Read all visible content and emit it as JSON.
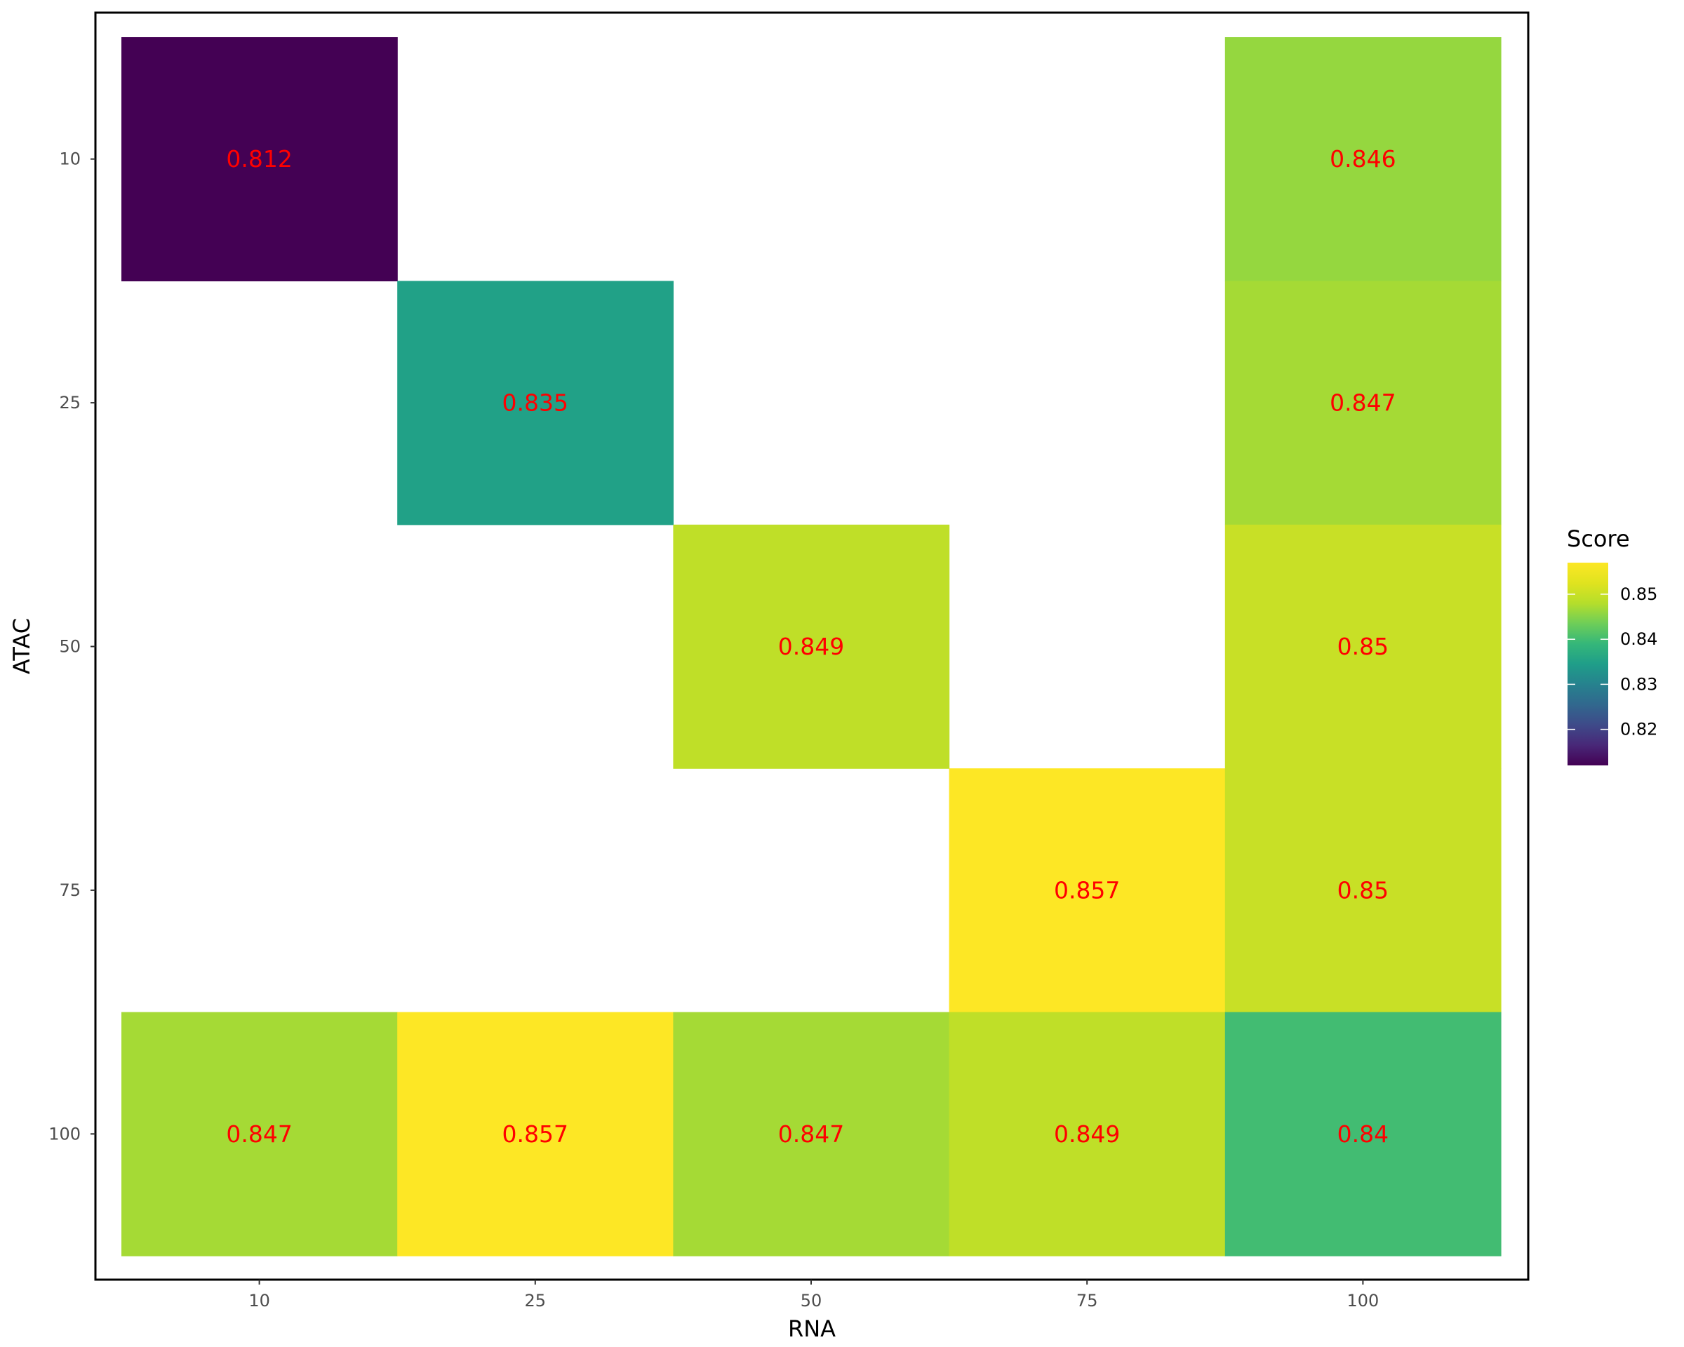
{
  "chart_data": {
    "type": "heatmap",
    "xlabel": "RNA",
    "ylabel": "ATAC",
    "x_categories": [
      "10",
      "25",
      "50",
      "75",
      "100"
    ],
    "y_categories": [
      "10",
      "25",
      "50",
      "75",
      "100"
    ],
    "cells": [
      {
        "x": "10",
        "y": "10",
        "value": 0.812,
        "label": "0.812"
      },
      {
        "x": "100",
        "y": "10",
        "value": 0.846,
        "label": "0.846"
      },
      {
        "x": "25",
        "y": "25",
        "value": 0.835,
        "label": "0.835"
      },
      {
        "x": "100",
        "y": "25",
        "value": 0.847,
        "label": "0.847"
      },
      {
        "x": "50",
        "y": "50",
        "value": 0.849,
        "label": "0.849"
      },
      {
        "x": "100",
        "y": "50",
        "value": 0.85,
        "label": "0.85"
      },
      {
        "x": "75",
        "y": "75",
        "value": 0.857,
        "label": "0.857"
      },
      {
        "x": "100",
        "y": "75",
        "value": 0.85,
        "label": "0.85"
      },
      {
        "x": "10",
        "y": "100",
        "value": 0.847,
        "label": "0.847"
      },
      {
        "x": "25",
        "y": "100",
        "value": 0.857,
        "label": "0.857"
      },
      {
        "x": "50",
        "y": "100",
        "value": 0.847,
        "label": "0.847"
      },
      {
        "x": "75",
        "y": "100",
        "value": 0.849,
        "label": "0.849"
      },
      {
        "x": "100",
        "y": "100",
        "value": 0.84,
        "label": "0.84"
      }
    ],
    "legend": {
      "title": "Score",
      "ticks": [
        "0.82",
        "0.83",
        "0.84",
        "0.85"
      ],
      "tick_values": [
        0.82,
        0.83,
        0.84,
        0.85
      ],
      "range": [
        0.812,
        0.857
      ],
      "colormap": "viridis",
      "placement": "right"
    },
    "label_color": "#ff0000",
    "grid": false
  }
}
